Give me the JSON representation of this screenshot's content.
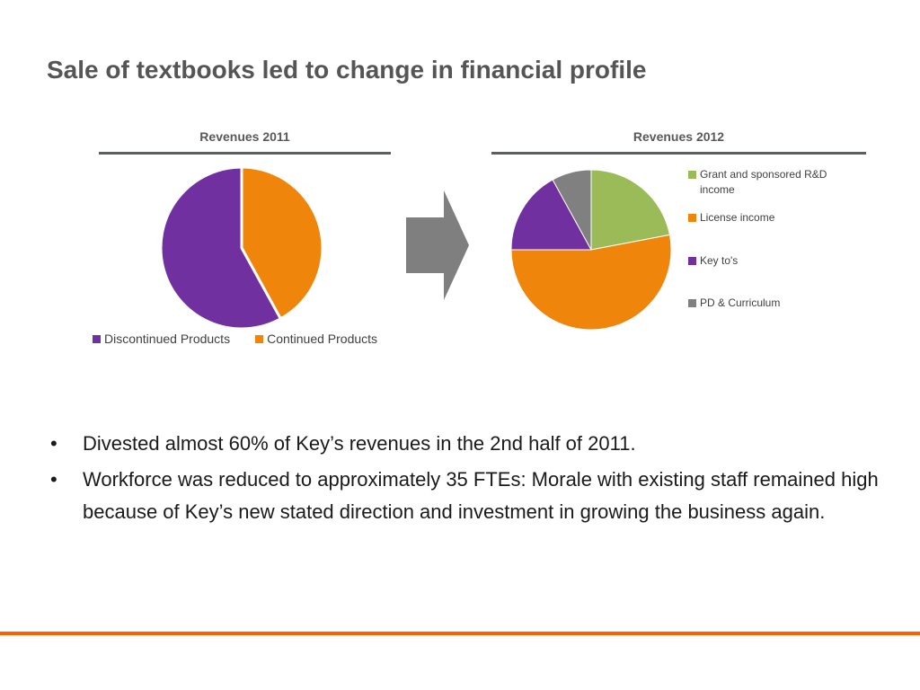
{
  "slide": {
    "title": "Sale of textbooks led to change in financial profile",
    "bullets": [
      "Divested almost 60% of Key’s revenues in the 2nd half of 2011.",
      "Workforce was reduced to approximately 35 FTEs: Morale with existing staff remained high because of Key’s new stated direction and investment in growing the business again."
    ],
    "bullet_marker": "•",
    "accent_color": "#ff5f00",
    "arrow_icon": "right-arrow-icon"
  },
  "chart_data": [
    {
      "type": "pie",
      "title": "Revenues 2011",
      "legend_position": "bottom",
      "slices": [
        {
          "label": "Continued Products",
          "value": 42,
          "color": "#f0850c"
        },
        {
          "label": "Discontinued Products",
          "value": 58,
          "color": "#7030a0"
        }
      ],
      "legend_order": [
        "Discontinued Products",
        "Continued Products"
      ]
    },
    {
      "type": "pie",
      "title": "Revenues 2012",
      "legend_position": "right",
      "slices": [
        {
          "label": "Grant and sponsored R&D income",
          "value": 22,
          "color": "#9bbb59"
        },
        {
          "label": "License income",
          "value": 53,
          "color": "#f0850c"
        },
        {
          "label": "Key to's",
          "value": 17,
          "color": "#7030a0"
        },
        {
          "label": "PD & Curriculum",
          "value": 8,
          "color": "#808080"
        }
      ],
      "legend_order": [
        "Grant and sponsored R&D income",
        "License income",
        "Key to's",
        "PD & Curriculum"
      ]
    }
  ]
}
